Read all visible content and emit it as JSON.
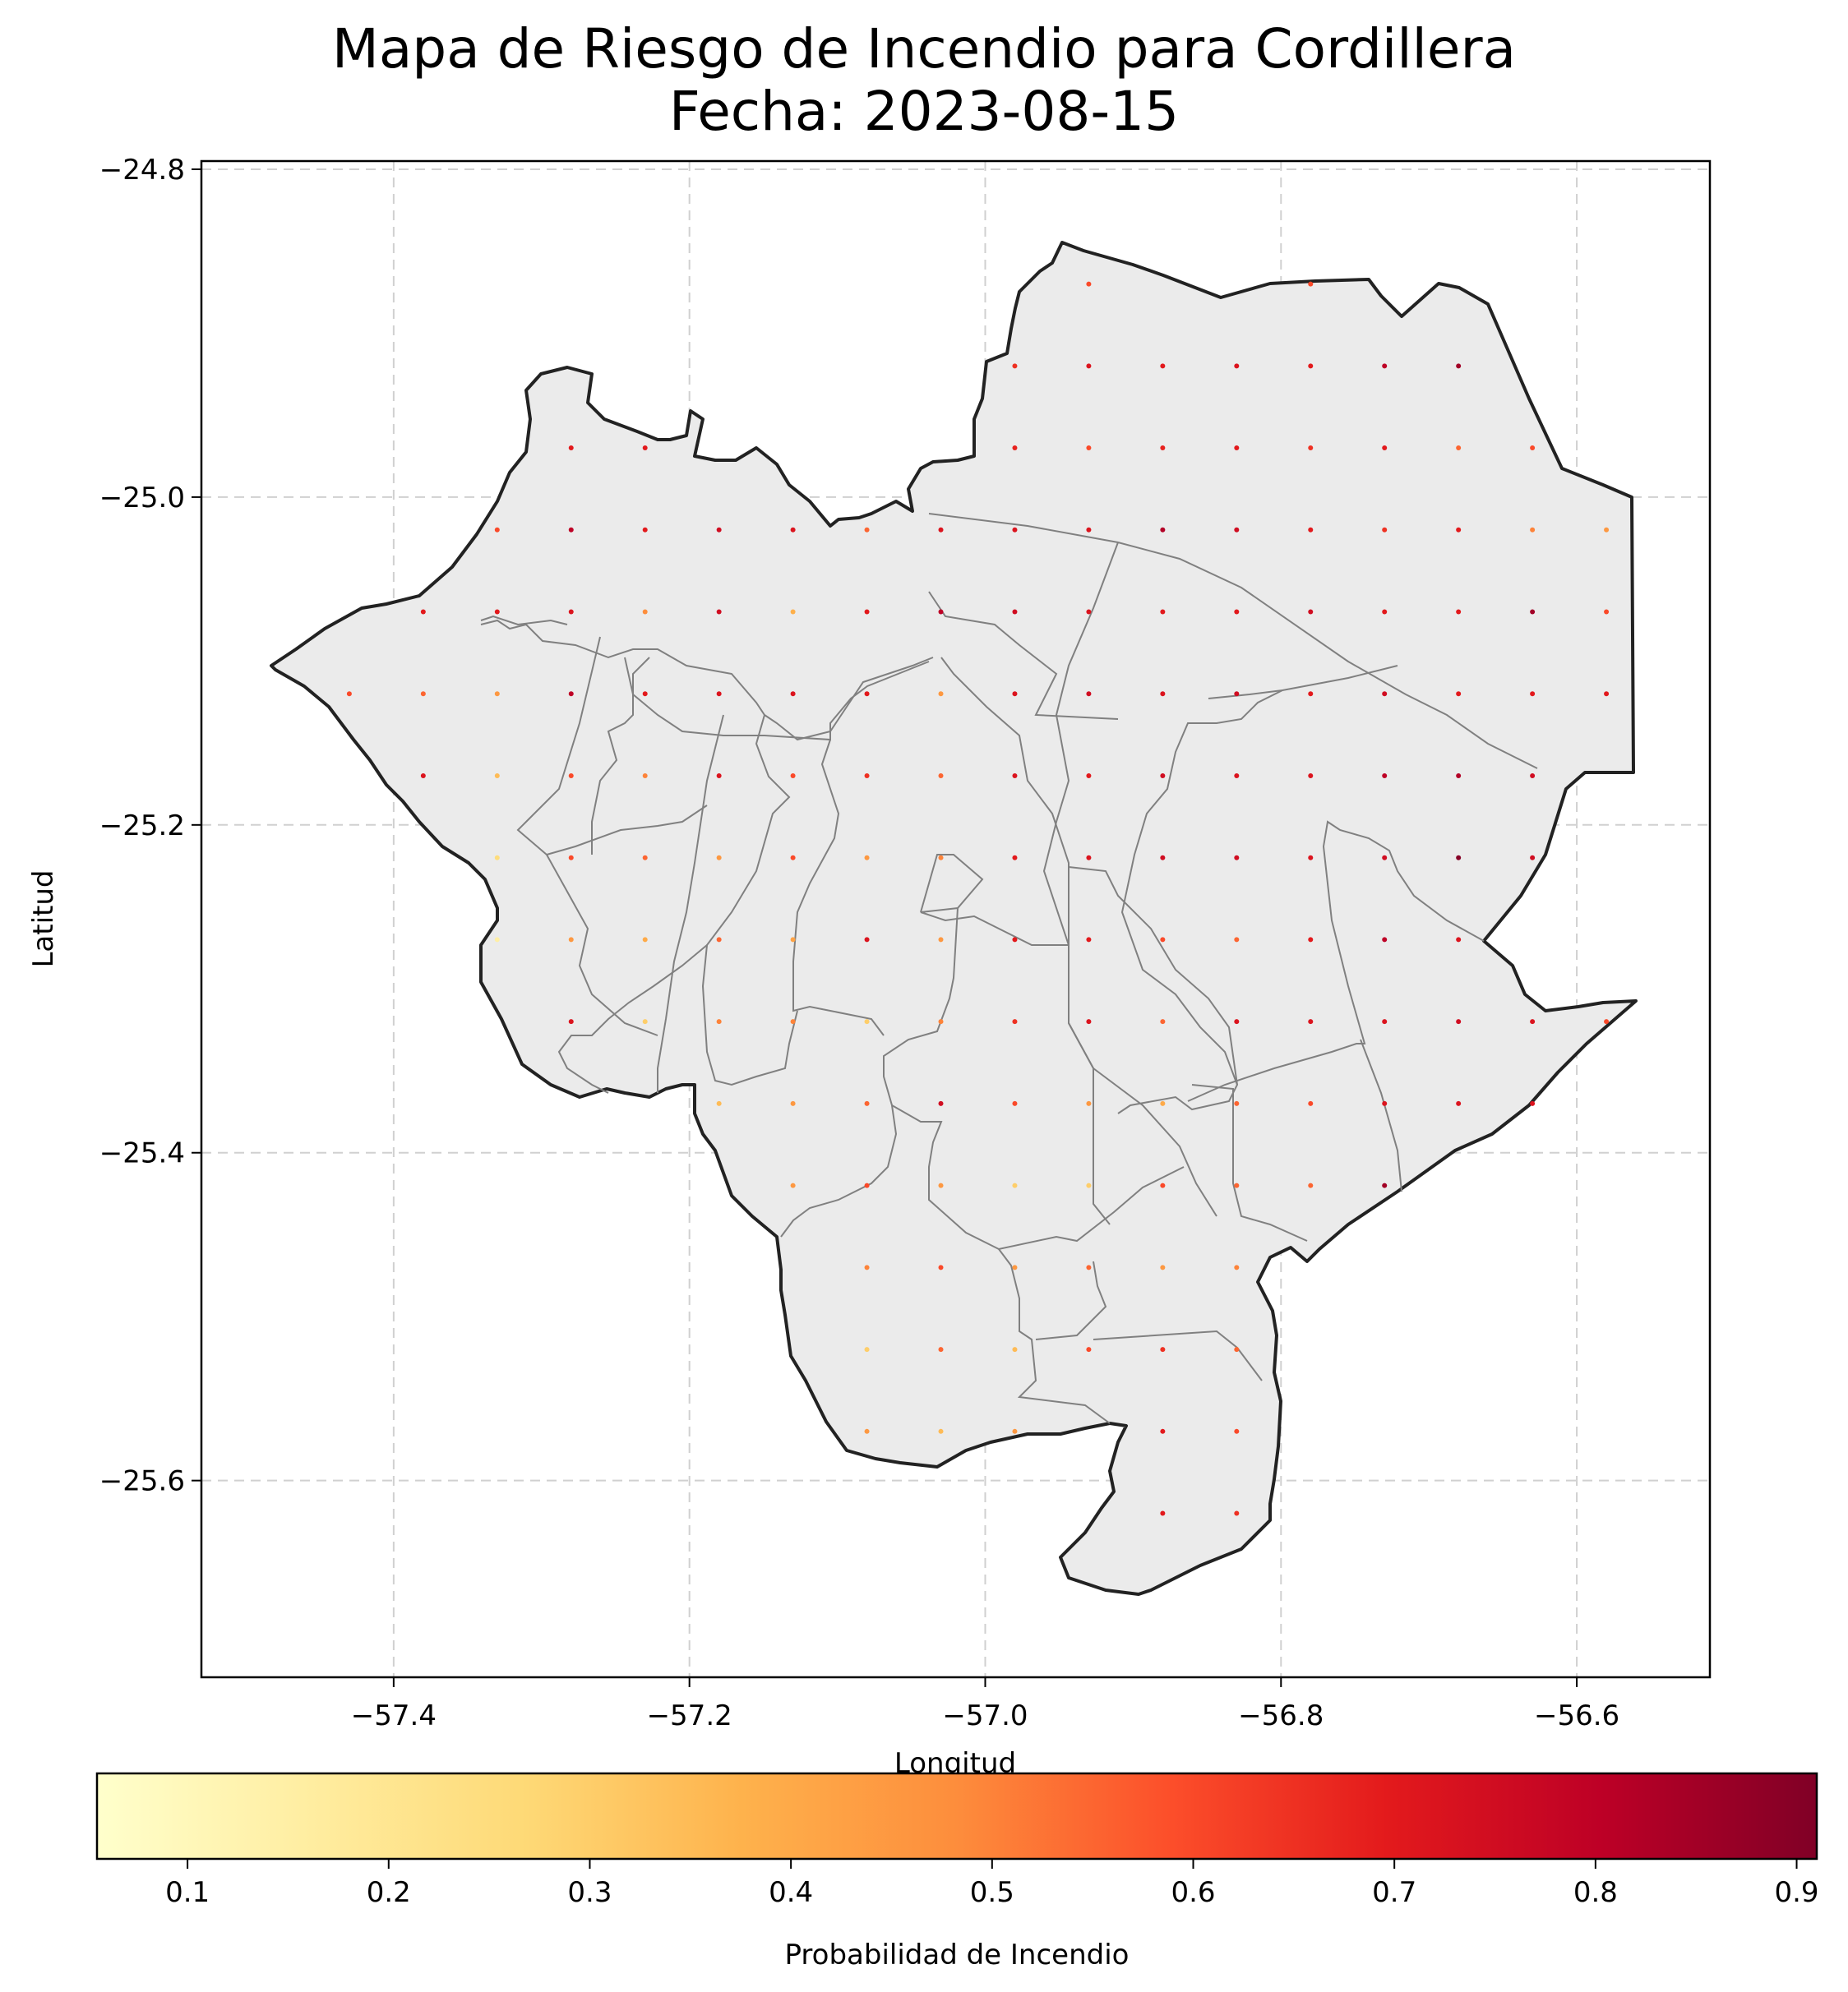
{
  "title_line1": "Mapa de Riesgo de Incendio para Cordillera",
  "title_line2": "Fecha: 2023-08-15",
  "xlabel": "Longitud",
  "ylabel": "Latitud",
  "colorbar_label": "Probabilidad de Incendio",
  "colorbar_ticks": [
    "0.1",
    "0.2",
    "0.3",
    "0.4",
    "0.5",
    "0.6",
    "0.7",
    "0.8",
    "0.9"
  ],
  "x_ticks": [
    "−57.4",
    "−57.2",
    "−57.0",
    "−56.8",
    "−56.6"
  ],
  "y_ticks": [
    "−24.8",
    "−25.0",
    "−25.2",
    "−25.4",
    "−25.6"
  ],
  "colors": {
    "region_fill": "#ebebeb",
    "outer_border": "#222222",
    "district_lines": "#808080",
    "grid": "#d0d0d0",
    "colormap": "YlOrRd"
  },
  "chart_data": {
    "type": "scatter",
    "xlim": [
      -57.53,
      -56.51
    ],
    "ylim": [
      -25.72,
      -24.795
    ],
    "grid": true,
    "colorbar_range": [
      0.055,
      0.91
    ],
    "points": [
      [
        -56.93,
        -24.87,
        0.6
      ],
      [
        -56.78,
        -24.87,
        0.6
      ],
      [
        -56.98,
        -24.92,
        0.65
      ],
      [
        -56.93,
        -24.92,
        0.72
      ],
      [
        -56.88,
        -24.92,
        0.7
      ],
      [
        -56.83,
        -24.92,
        0.72
      ],
      [
        -56.78,
        -24.92,
        0.7
      ],
      [
        -56.73,
        -24.92,
        0.8
      ],
      [
        -56.68,
        -24.92,
        0.85
      ],
      [
        -57.28,
        -24.97,
        0.7
      ],
      [
        -57.23,
        -24.97,
        0.7
      ],
      [
        -56.98,
        -24.97,
        0.68
      ],
      [
        -56.93,
        -24.97,
        0.6
      ],
      [
        -56.88,
        -24.97,
        0.68
      ],
      [
        -56.83,
        -24.97,
        0.7
      ],
      [
        -56.78,
        -24.97,
        0.65
      ],
      [
        -56.73,
        -24.97,
        0.7
      ],
      [
        -56.68,
        -24.97,
        0.55
      ],
      [
        -56.63,
        -24.97,
        0.6
      ],
      [
        -57.33,
        -25.02,
        0.6
      ],
      [
        -57.28,
        -25.02,
        0.8
      ],
      [
        -57.23,
        -25.02,
        0.7
      ],
      [
        -57.18,
        -25.02,
        0.75
      ],
      [
        -57.13,
        -25.02,
        0.72
      ],
      [
        -57.08,
        -25.02,
        0.55
      ],
      [
        -57.03,
        -25.02,
        0.72
      ],
      [
        -56.98,
        -25.02,
        0.72
      ],
      [
        -56.93,
        -25.02,
        0.72
      ],
      [
        -56.88,
        -25.02,
        0.82
      ],
      [
        -56.83,
        -25.02,
        0.75
      ],
      [
        -56.78,
        -25.02,
        0.7
      ],
      [
        -56.73,
        -25.02,
        0.65
      ],
      [
        -56.68,
        -25.02,
        0.7
      ],
      [
        -56.63,
        -25.02,
        0.5
      ],
      [
        -56.58,
        -25.02,
        0.45
      ],
      [
        -57.38,
        -25.07,
        0.7
      ],
      [
        -57.33,
        -25.07,
        0.7
      ],
      [
        -57.28,
        -25.07,
        0.72
      ],
      [
        -57.23,
        -25.07,
        0.48
      ],
      [
        -57.18,
        -25.07,
        0.75
      ],
      [
        -57.13,
        -25.07,
        0.38
      ],
      [
        -57.08,
        -25.07,
        0.7
      ],
      [
        -57.03,
        -25.07,
        0.8
      ],
      [
        -56.98,
        -25.07,
        0.75
      ],
      [
        -56.93,
        -25.07,
        0.72
      ],
      [
        -56.88,
        -25.07,
        0.7
      ],
      [
        -56.83,
        -25.07,
        0.7
      ],
      [
        -56.78,
        -25.07,
        0.75
      ],
      [
        -56.73,
        -25.07,
        0.7
      ],
      [
        -56.68,
        -25.07,
        0.7
      ],
      [
        -56.63,
        -25.07,
        0.85
      ],
      [
        -56.58,
        -25.07,
        0.6
      ],
      [
        -57.43,
        -25.12,
        0.6
      ],
      [
        -57.38,
        -25.12,
        0.55
      ],
      [
        -57.33,
        -25.12,
        0.45
      ],
      [
        -57.28,
        -25.12,
        0.8
      ],
      [
        -57.23,
        -25.12,
        0.7
      ],
      [
        -57.18,
        -25.12,
        0.72
      ],
      [
        -57.13,
        -25.12,
        0.72
      ],
      [
        -57.08,
        -25.12,
        0.7
      ],
      [
        -57.03,
        -25.12,
        0.45
      ],
      [
        -56.98,
        -25.12,
        0.72
      ],
      [
        -56.93,
        -25.12,
        0.75
      ],
      [
        -56.88,
        -25.12,
        0.72
      ],
      [
        -56.83,
        -25.12,
        0.75
      ],
      [
        -56.78,
        -25.12,
        0.7
      ],
      [
        -56.73,
        -25.12,
        0.75
      ],
      [
        -56.68,
        -25.12,
        0.7
      ],
      [
        -56.63,
        -25.12,
        0.7
      ],
      [
        -56.58,
        -25.12,
        0.7
      ],
      [
        -57.38,
        -25.17,
        0.72
      ],
      [
        -57.33,
        -25.17,
        0.35
      ],
      [
        -57.28,
        -25.17,
        0.6
      ],
      [
        -57.23,
        -25.17,
        0.5
      ],
      [
        -57.18,
        -25.17,
        0.72
      ],
      [
        -57.13,
        -25.17,
        0.6
      ],
      [
        -57.08,
        -25.17,
        0.65
      ],
      [
        -57.03,
        -25.17,
        0.55
      ],
      [
        -56.98,
        -25.17,
        0.72
      ],
      [
        -56.93,
        -25.17,
        0.7
      ],
      [
        -56.88,
        -25.17,
        0.75
      ],
      [
        -56.83,
        -25.17,
        0.72
      ],
      [
        -56.78,
        -25.17,
        0.72
      ],
      [
        -56.73,
        -25.17,
        0.8
      ],
      [
        -56.68,
        -25.17,
        0.82
      ],
      [
        -56.63,
        -25.17,
        0.75
      ],
      [
        -57.33,
        -25.22,
        0.25
      ],
      [
        -57.28,
        -25.22,
        0.6
      ],
      [
        -57.23,
        -25.22,
        0.55
      ],
      [
        -57.18,
        -25.22,
        0.45
      ],
      [
        -57.13,
        -25.22,
        0.6
      ],
      [
        -57.08,
        -25.22,
        0.45
      ],
      [
        -57.03,
        -25.22,
        0.5
      ],
      [
        -56.98,
        -25.22,
        0.7
      ],
      [
        -56.93,
        -25.22,
        0.72
      ],
      [
        -56.88,
        -25.22,
        0.75
      ],
      [
        -56.83,
        -25.22,
        0.75
      ],
      [
        -56.78,
        -25.22,
        0.72
      ],
      [
        -56.73,
        -25.22,
        0.75
      ],
      [
        -56.68,
        -25.22,
        0.9
      ],
      [
        -56.63,
        -25.22,
        0.75
      ],
      [
        -57.33,
        -25.27,
        0.15
      ],
      [
        -57.28,
        -25.27,
        0.45
      ],
      [
        -57.23,
        -25.27,
        0.4
      ],
      [
        -57.18,
        -25.27,
        0.55
      ],
      [
        -57.13,
        -25.27,
        0.42
      ],
      [
        -57.08,
        -25.27,
        0.72
      ],
      [
        -57.03,
        -25.27,
        0.45
      ],
      [
        -56.98,
        -25.27,
        0.7
      ],
      [
        -56.93,
        -25.27,
        0.7
      ],
      [
        -56.88,
        -25.27,
        0.6
      ],
      [
        -56.83,
        -25.27,
        0.55
      ],
      [
        -56.78,
        -25.27,
        0.7
      ],
      [
        -56.73,
        -25.27,
        0.8
      ],
      [
        -56.68,
        -25.27,
        0.72
      ],
      [
        -57.28,
        -25.32,
        0.72
      ],
      [
        -57.23,
        -25.32,
        0.3
      ],
      [
        -57.18,
        -25.32,
        0.5
      ],
      [
        -57.13,
        -25.32,
        0.5
      ],
      [
        -57.08,
        -25.32,
        0.3
      ],
      [
        -57.03,
        -25.32,
        0.5
      ],
      [
        -56.98,
        -25.32,
        0.65
      ],
      [
        -56.93,
        -25.32,
        0.72
      ],
      [
        -56.88,
        -25.32,
        0.55
      ],
      [
        -56.83,
        -25.32,
        0.72
      ],
      [
        -56.78,
        -25.32,
        0.72
      ],
      [
        -56.73,
        -25.32,
        0.72
      ],
      [
        -56.68,
        -25.32,
        0.75
      ],
      [
        -56.63,
        -25.32,
        0.72
      ],
      [
        -56.58,
        -25.32,
        0.6
      ],
      [
        -57.18,
        -25.37,
        0.35
      ],
      [
        -57.13,
        -25.37,
        0.45
      ],
      [
        -57.08,
        -25.37,
        0.55
      ],
      [
        -57.03,
        -25.37,
        0.75
      ],
      [
        -56.98,
        -25.37,
        0.6
      ],
      [
        -56.93,
        -25.37,
        0.45
      ],
      [
        -56.88,
        -25.37,
        0.4
      ],
      [
        -56.83,
        -25.37,
        0.55
      ],
      [
        -56.78,
        -25.37,
        0.6
      ],
      [
        -56.73,
        -25.37,
        0.72
      ],
      [
        -56.68,
        -25.37,
        0.72
      ],
      [
        -56.63,
        -25.37,
        0.72
      ],
      [
        -57.13,
        -25.42,
        0.45
      ],
      [
        -57.08,
        -25.42,
        0.6
      ],
      [
        -57.03,
        -25.42,
        0.45
      ],
      [
        -56.98,
        -25.42,
        0.3
      ],
      [
        -56.93,
        -25.42,
        0.3
      ],
      [
        -56.88,
        -25.42,
        0.6
      ],
      [
        -56.83,
        -25.42,
        0.55
      ],
      [
        -56.78,
        -25.42,
        0.55
      ],
      [
        -56.73,
        -25.42,
        0.85
      ],
      [
        -57.08,
        -25.47,
        0.5
      ],
      [
        -57.03,
        -25.47,
        0.6
      ],
      [
        -56.98,
        -25.47,
        0.45
      ],
      [
        -56.93,
        -25.47,
        0.55
      ],
      [
        -56.88,
        -25.47,
        0.45
      ],
      [
        -56.83,
        -25.47,
        0.5
      ],
      [
        -57.08,
        -25.52,
        0.3
      ],
      [
        -57.03,
        -25.52,
        0.55
      ],
      [
        -56.98,
        -25.52,
        0.35
      ],
      [
        -56.93,
        -25.52,
        0.6
      ],
      [
        -56.88,
        -25.52,
        0.65
      ],
      [
        -56.83,
        -25.52,
        0.55
      ],
      [
        -57.08,
        -25.57,
        0.45
      ],
      [
        -57.03,
        -25.57,
        0.35
      ],
      [
        -56.98,
        -25.57,
        0.45
      ],
      [
        -56.88,
        -25.57,
        0.7
      ],
      [
        -56.83,
        -25.57,
        0.6
      ],
      [
        -56.88,
        -25.62,
        0.7
      ],
      [
        -56.83,
        -25.62,
        0.65
      ]
    ]
  }
}
